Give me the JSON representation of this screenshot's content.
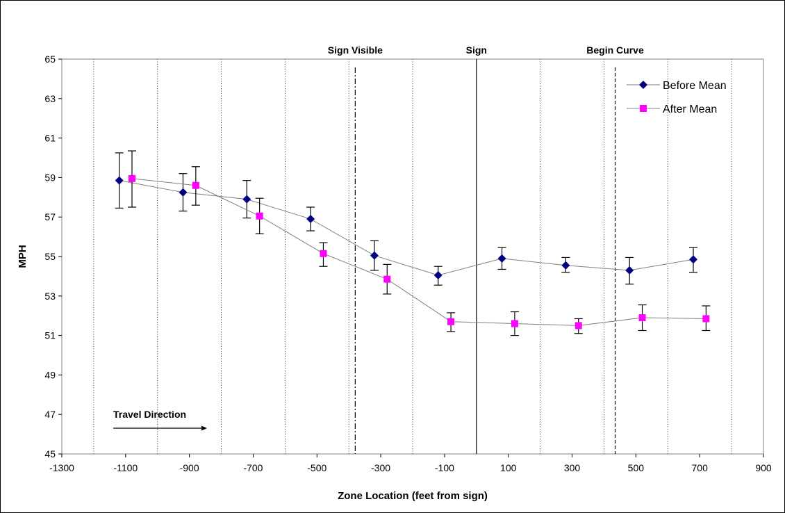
{
  "chart_data": {
    "type": "line",
    "title": "",
    "xlabel": "Zone Location (feet from sign)",
    "ylabel": "MPH",
    "xlim": [
      -1300,
      900
    ],
    "ylim": [
      45,
      65
    ],
    "x_ticks": [
      "-1300",
      "-1100",
      "-900",
      "-700",
      "-500",
      "-300",
      "-100",
      "100",
      "300",
      "500",
      "700",
      "900"
    ],
    "y_ticks": [
      "45",
      "47",
      "49",
      "51",
      "53",
      "55",
      "57",
      "59",
      "61",
      "63",
      "65"
    ],
    "x_tick_values": [
      -1300,
      -1100,
      -900,
      -700,
      -500,
      -300,
      -100,
      100,
      300,
      500,
      700,
      900
    ],
    "y_tick_values": [
      45,
      47,
      49,
      51,
      53,
      55,
      57,
      59,
      61,
      63,
      65
    ],
    "grid": {
      "vertical_dotted": true,
      "x_values": [
        -1200,
        -1000,
        -800,
        -600,
        -400,
        -200,
        200,
        400,
        600,
        800
      ]
    },
    "legend_position": "top-right",
    "series": [
      {
        "name": "Before Mean",
        "color": "#000080",
        "marker": "diamond",
        "x": [
          -1120,
          -920,
          -720,
          -520,
          -320,
          -120,
          80,
          280,
          480,
          680
        ],
        "y": [
          58.85,
          58.25,
          57.9,
          56.9,
          55.05,
          54.05,
          54.9,
          54.55,
          54.3,
          54.85
        ],
        "err_low": [
          57.45,
          57.3,
          56.95,
          56.3,
          54.3,
          53.55,
          54.35,
          54.2,
          53.6,
          54.2
        ],
        "err_high": [
          60.25,
          59.2,
          58.85,
          57.5,
          55.8,
          54.5,
          55.45,
          54.95,
          54.95,
          55.45
        ]
      },
      {
        "name": "After Mean",
        "color": "#FF00FF",
        "marker": "square",
        "x": [
          -1080,
          -880,
          -680,
          -480,
          -280,
          -80,
          120,
          320,
          520,
          720
        ],
        "y": [
          58.95,
          58.6,
          57.05,
          55.15,
          53.85,
          51.7,
          51.6,
          51.5,
          51.9,
          51.85
        ],
        "err_low": [
          57.5,
          57.6,
          56.15,
          54.5,
          53.1,
          51.2,
          51.0,
          51.1,
          51.25,
          51.25
        ],
        "err_high": [
          60.35,
          59.55,
          57.95,
          55.7,
          54.6,
          52.15,
          52.2,
          51.85,
          52.55,
          52.5
        ]
      }
    ],
    "reference_lines": [
      {
        "label": "Sign Visible",
        "x": -380,
        "style": "dash-dot"
      },
      {
        "label": "Sign",
        "x": 0,
        "style": "solid"
      },
      {
        "label": "Begin Curve",
        "x": 435,
        "style": "dashed"
      }
    ],
    "annotation": {
      "text": "Travel Direction",
      "arrow": "right"
    }
  }
}
